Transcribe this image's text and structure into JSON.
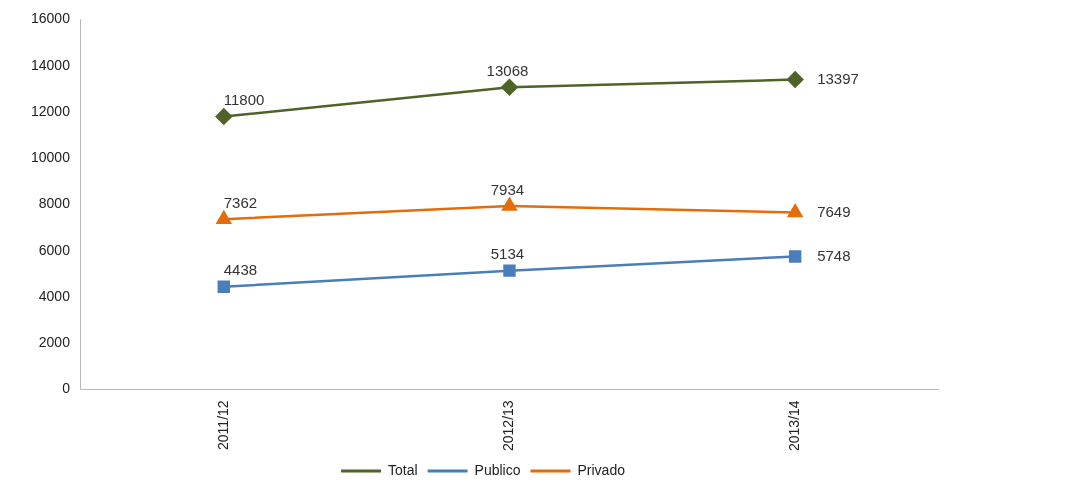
{
  "chart_data": {
    "type": "line",
    "categories": [
      "2011/12",
      "2012/13",
      "2013/14"
    ],
    "series": [
      {
        "name": "Total",
        "color": "#4f6228",
        "marker": "diamond",
        "values": [
          11800,
          13068,
          13397
        ]
      },
      {
        "name": "Publico",
        "color": "#4a7ebb",
        "marker": "square",
        "values": [
          4438,
          5134,
          5748
        ]
      },
      {
        "name": "Privado",
        "color": "#e46c0a",
        "marker": "triangle",
        "values": [
          7362,
          7934,
          7649
        ]
      }
    ],
    "ylim": [
      0,
      16000
    ],
    "yticks": [
      0,
      2000,
      4000,
      6000,
      8000,
      10000,
      12000,
      14000,
      16000
    ],
    "grid": false,
    "legend": "bottom",
    "data_labels": true
  }
}
